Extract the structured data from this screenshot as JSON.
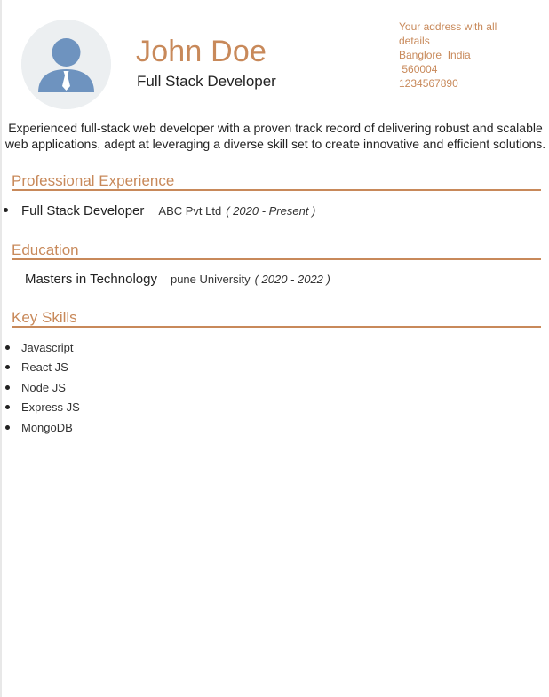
{
  "profile": {
    "name": "John Doe",
    "role": "Full Stack Developer"
  },
  "contact": {
    "address_lines": [
      "Your address with all",
      "details",
      "Banglore  India",
      " 560004",
      "1234567890"
    ]
  },
  "summary": "Experienced full-stack web developer with a proven track record of delivering robust and scalable web applications, adept at leveraging a diverse skill set to create innovative and efficient solutions.",
  "sections": {
    "experience_title": "Professional Experience",
    "education_title": "Education",
    "skills_title": "Key Skills"
  },
  "experience": {
    "title": "Full Stack Developer",
    "company": "ABC Pvt Ltd",
    "period": "( 2020 - Present )"
  },
  "education": {
    "degree": "Masters in Technology",
    "school": "pune University",
    "period": "( 2020 - 2022 )"
  },
  "skills": [
    "Javascript",
    "React JS",
    "Node JS",
    "Express JS",
    "MongoDB"
  ],
  "colors": {
    "accent": "#c8895a",
    "avatar_figure": "#6e93bf",
    "avatar_bg": "#eceff1"
  },
  "icons": {
    "avatar": "person-silhouette-icon"
  }
}
